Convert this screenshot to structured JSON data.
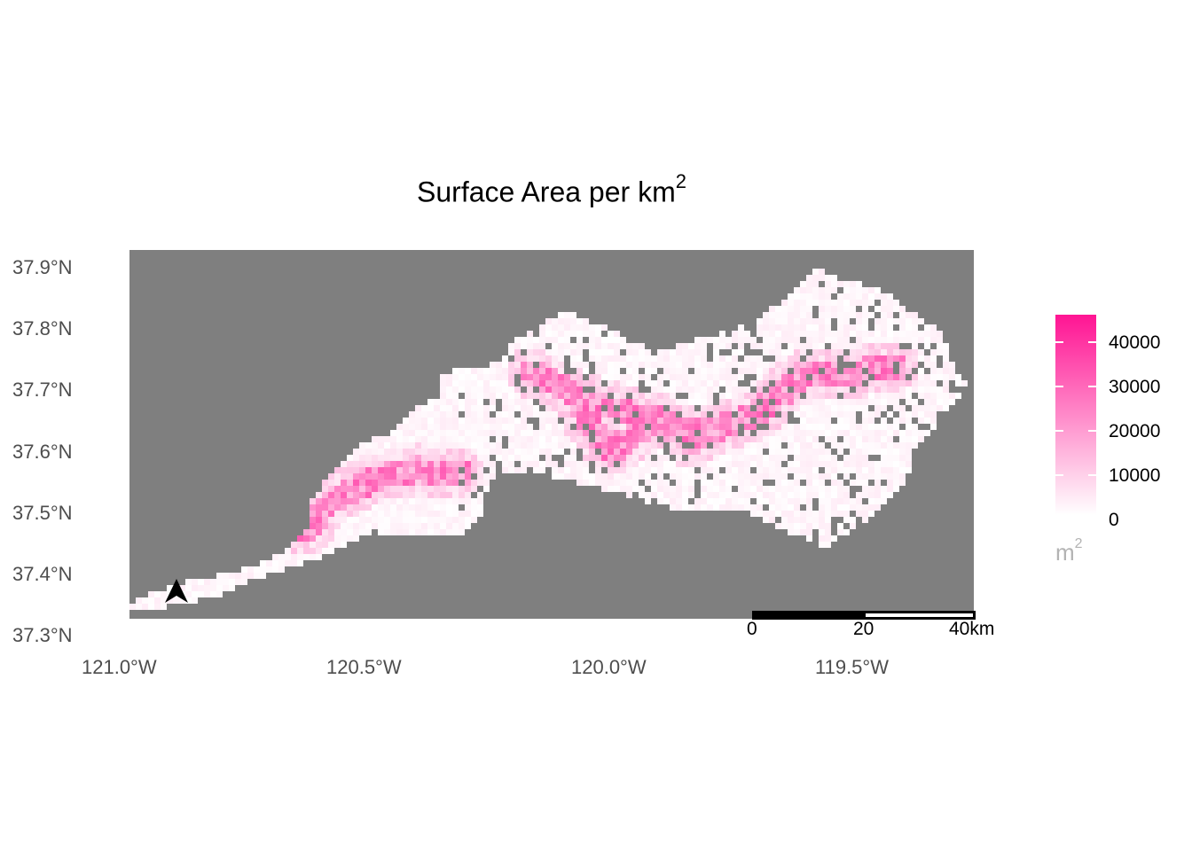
{
  "map": {
    "title": "Surface Area per km",
    "title_sup": "2",
    "colors": {
      "background": "#7f7f7f",
      "low": "#ffffff",
      "high": "#ff1493",
      "north_arrow": "#000000",
      "scale_bar": "#000000"
    },
    "y_axis": {
      "ticks": [
        "37.9°N",
        "37.8°N",
        "37.7°N",
        "37.6°N",
        "37.5°N",
        "37.4°N",
        "37.3°N"
      ],
      "range": [
        37.3,
        37.9
      ]
    },
    "x_axis": {
      "ticks": [
        "121.0°W",
        "120.5°W",
        "120.0°W",
        "119.5°W"
      ],
      "range": [
        -121.0,
        -119.5
      ]
    },
    "legend": {
      "ticks": [
        "40000",
        "30000",
        "20000",
        "10000",
        "0"
      ],
      "unit": "m",
      "unit_sup": "2",
      "max_value": 46000
    },
    "scale_bar": {
      "labels": [
        "0",
        "20",
        "40"
      ],
      "unit": "km"
    },
    "north_arrow_icon": "north-arrow-icon"
  }
}
